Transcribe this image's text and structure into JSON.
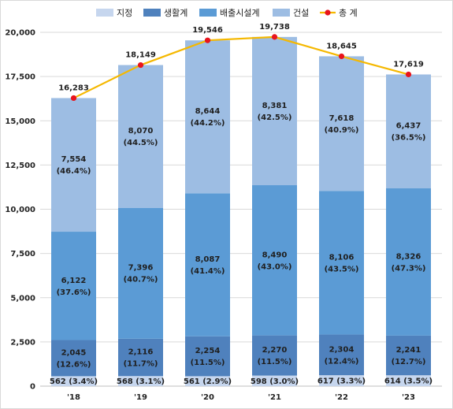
{
  "chart_data": {
    "type": "bar",
    "stacked": true,
    "categories": [
      "'18",
      "'19",
      "'20",
      "'21",
      "'22",
      "'23"
    ],
    "ylim": [
      0,
      20000
    ],
    "yticks": [
      0,
      2500,
      5000,
      7500,
      10000,
      12500,
      15000,
      17500,
      20000
    ],
    "ytick_labels": [
      "0",
      "2,500",
      "5,000",
      "7,500",
      "10,000",
      "12,500",
      "15,000",
      "17,500",
      "20,000"
    ],
    "grid": true,
    "legend_position": "top-center",
    "series": [
      {
        "name": "지정",
        "color": "#c6d6ee",
        "values": [
          562,
          568,
          561,
          598,
          617,
          614
        ],
        "labels": [
          "562 (3.4%)",
          "568 (3.1%)",
          "561 (2.9%)",
          "598 (3.0%)",
          "617 (3.3%)",
          "614 (3.5%)"
        ]
      },
      {
        "name": "생활계",
        "color": "#4f81bd",
        "values": [
          2045,
          2116,
          2254,
          2270,
          2304,
          2241
        ],
        "labels": [
          "2,045",
          "2,116",
          "2,254",
          "2,270",
          "2,304",
          "2,241"
        ],
        "pct": [
          "(12.6%)",
          "(11.7%)",
          "(11.5%)",
          "(11.5%)",
          "(12.4%)",
          "(12.7%)"
        ]
      },
      {
        "name": "배출시설계",
        "color": "#5b9bd5",
        "values": [
          6122,
          7396,
          8087,
          8490,
          8106,
          8326
        ],
        "labels": [
          "6,122",
          "7,396",
          "8,087",
          "8,490",
          "8,106",
          "8,326"
        ],
        "pct": [
          "(37.6%)",
          "(40.7%)",
          "(41.4%)",
          "(43.0%)",
          "(43.5%)",
          "(47.3%)"
        ]
      },
      {
        "name": "건설",
        "color": "#9dbde3",
        "values": [
          7554,
          8070,
          8644,
          8381,
          7618,
          6437
        ],
        "labels": [
          "7,554",
          "8,070",
          "8,644",
          "8,381",
          "7,618",
          "6,437"
        ],
        "pct": [
          "(46.4%)",
          "(44.5%)",
          "(44.2%)",
          "(42.5%)",
          "(40.9%)",
          "(36.5%)"
        ]
      }
    ],
    "total": {
      "name": "총 계",
      "type": "line",
      "line_color": "#f5b800",
      "marker_color": "#e8141c",
      "values": [
        16283,
        18149,
        19546,
        19738,
        18645,
        17619
      ],
      "labels": [
        "16,283",
        "18,149",
        "19,546",
        "19,738",
        "18,645",
        "17,619"
      ]
    }
  }
}
